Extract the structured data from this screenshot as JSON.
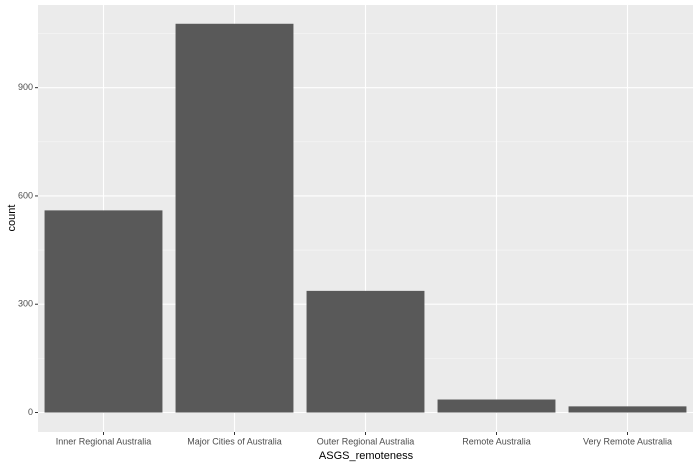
{
  "chart_data": {
    "type": "bar",
    "x_label": "ASGS_remoteness",
    "y_label": "count",
    "categories": [
      "Inner Regional Australia",
      "Major Cities of Australia",
      "Outer Regional Australia",
      "Remote Australia",
      "Very Remote Australia"
    ],
    "values": [
      560,
      1077,
      337,
      36,
      17
    ],
    "color": "#595959",
    "ylim": [
      -54,
      1129
    ],
    "yticks": [
      0,
      300,
      600,
      900
    ],
    "minor_yticks": [
      150,
      450,
      750,
      1050
    ],
    "grid": true
  }
}
